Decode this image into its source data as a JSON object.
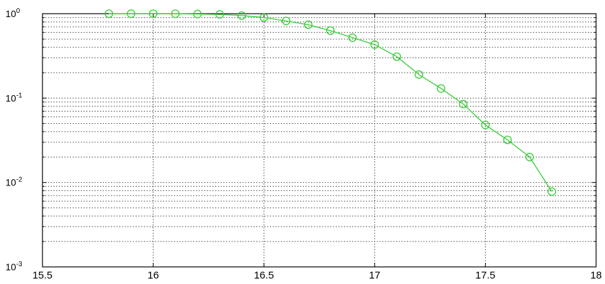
{
  "chart_data": {
    "type": "line",
    "title": "",
    "xlabel": "",
    "ylabel": "",
    "xlim": [
      15.5,
      18
    ],
    "ylim": [
      0.001,
      1
    ],
    "yscale": "log",
    "grid": true,
    "x_ticks": [
      "15.5",
      "16",
      "16.5",
      "17",
      "17.5",
      "18"
    ],
    "y_ticks": [
      {
        "base": "10",
        "exp": "0"
      },
      {
        "base": "10",
        "exp": "-1"
      },
      {
        "base": "10",
        "exp": "-2"
      },
      {
        "base": "10",
        "exp": "-3"
      }
    ],
    "series": [
      {
        "color": "#33cc33",
        "marker": "circle",
        "x": [
          15.8,
          15.9,
          16.0,
          16.1,
          16.2,
          16.3,
          16.4,
          16.5,
          16.6,
          16.7,
          16.8,
          16.9,
          17.0,
          17.1,
          17.2,
          17.3,
          17.4,
          17.5,
          17.6,
          17.7,
          17.8
        ],
        "y": [
          1.0,
          1.0,
          1.0,
          1.0,
          0.99,
          0.98,
          0.95,
          0.9,
          0.82,
          0.74,
          0.63,
          0.52,
          0.43,
          0.31,
          0.19,
          0.13,
          0.085,
          0.048,
          0.032,
          0.02,
          0.0078
        ]
      }
    ]
  }
}
